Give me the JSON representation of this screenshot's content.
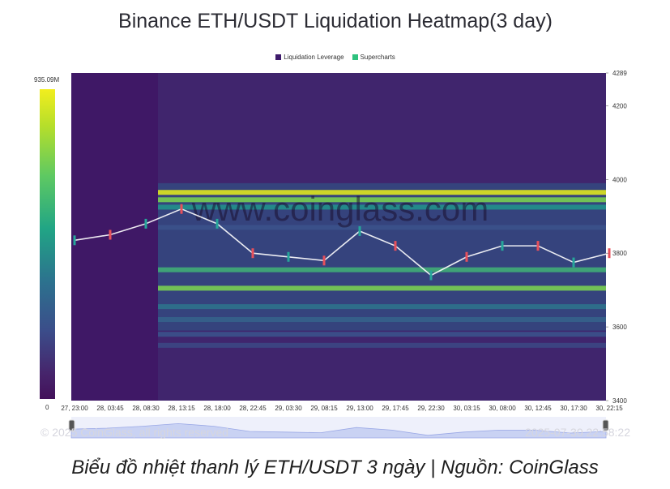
{
  "chart_data": {
    "type": "heatmap",
    "title": "Binance ETH/USDT Liquidation Heatmap(3 day)",
    "legend": [
      {
        "name": "Liquidation Leverage",
        "color": "#3e1a6b"
      },
      {
        "name": "Supercharts",
        "color": "#2ec27e"
      }
    ],
    "colorbar": {
      "max_label": "935.09M",
      "min_label": "0"
    },
    "y_axis": {
      "range": [
        3400,
        4289
      ],
      "ticks": [
        3400,
        3600,
        3800,
        4000,
        4200,
        4289
      ]
    },
    "x_axis": {
      "ticks": [
        "27, 23:00",
        "28, 03:45",
        "28, 08:30",
        "28, 13:15",
        "28, 18:00",
        "28, 22:45",
        "29, 03:30",
        "29, 08:15",
        "29, 13:00",
        "29, 17:45",
        "29, 22:30",
        "30, 03:15",
        "30, 08:00",
        "30, 12:45",
        "30, 17:30",
        "30, 22:15"
      ]
    },
    "liquidation_bands": [
      {
        "price": 3965,
        "intensity": 0.95
      },
      {
        "price": 3945,
        "intensity": 0.75
      },
      {
        "price": 3925,
        "intensity": 0.5
      },
      {
        "price": 3870,
        "intensity": 0.3
      },
      {
        "price": 3755,
        "intensity": 0.6
      },
      {
        "price": 3705,
        "intensity": 0.75
      },
      {
        "price": 3655,
        "intensity": 0.4
      },
      {
        "price": 3620,
        "intensity": 0.35
      },
      {
        "price": 3580,
        "intensity": 0.3
      },
      {
        "price": 3550,
        "intensity": 0.25
      }
    ],
    "price_path": [
      {
        "x": "27, 23:00",
        "price": 3835
      },
      {
        "x": "28, 03:45",
        "price": 3850
      },
      {
        "x": "28, 08:30",
        "price": 3880
      },
      {
        "x": "28, 13:15",
        "price": 3920
      },
      {
        "x": "28, 18:00",
        "price": 3880
      },
      {
        "x": "28, 22:45",
        "price": 3800
      },
      {
        "x": "29, 03:30",
        "price": 3790
      },
      {
        "x": "29, 08:15",
        "price": 3780
      },
      {
        "x": "29, 13:00",
        "price": 3860
      },
      {
        "x": "29, 17:45",
        "price": 3820
      },
      {
        "x": "29, 22:30",
        "price": 3740
      },
      {
        "x": "30, 03:15",
        "price": 3790
      },
      {
        "x": "30, 08:00",
        "price": 3820
      },
      {
        "x": "30, 12:45",
        "price": 3820
      },
      {
        "x": "30, 17:30",
        "price": 3775
      },
      {
        "x": "30, 22:15",
        "price": 3800
      }
    ]
  },
  "watermark": "www.coinglass.com",
  "footer": {
    "copyright": "© 2025 CoinGlass, all rights reserved",
    "timestamp": "2025-07-30 22:58:22"
  },
  "caption": "Biểu đồ nhiệt thanh lý ETH/USDT 3 ngày | Nguồn: CoinGlass"
}
